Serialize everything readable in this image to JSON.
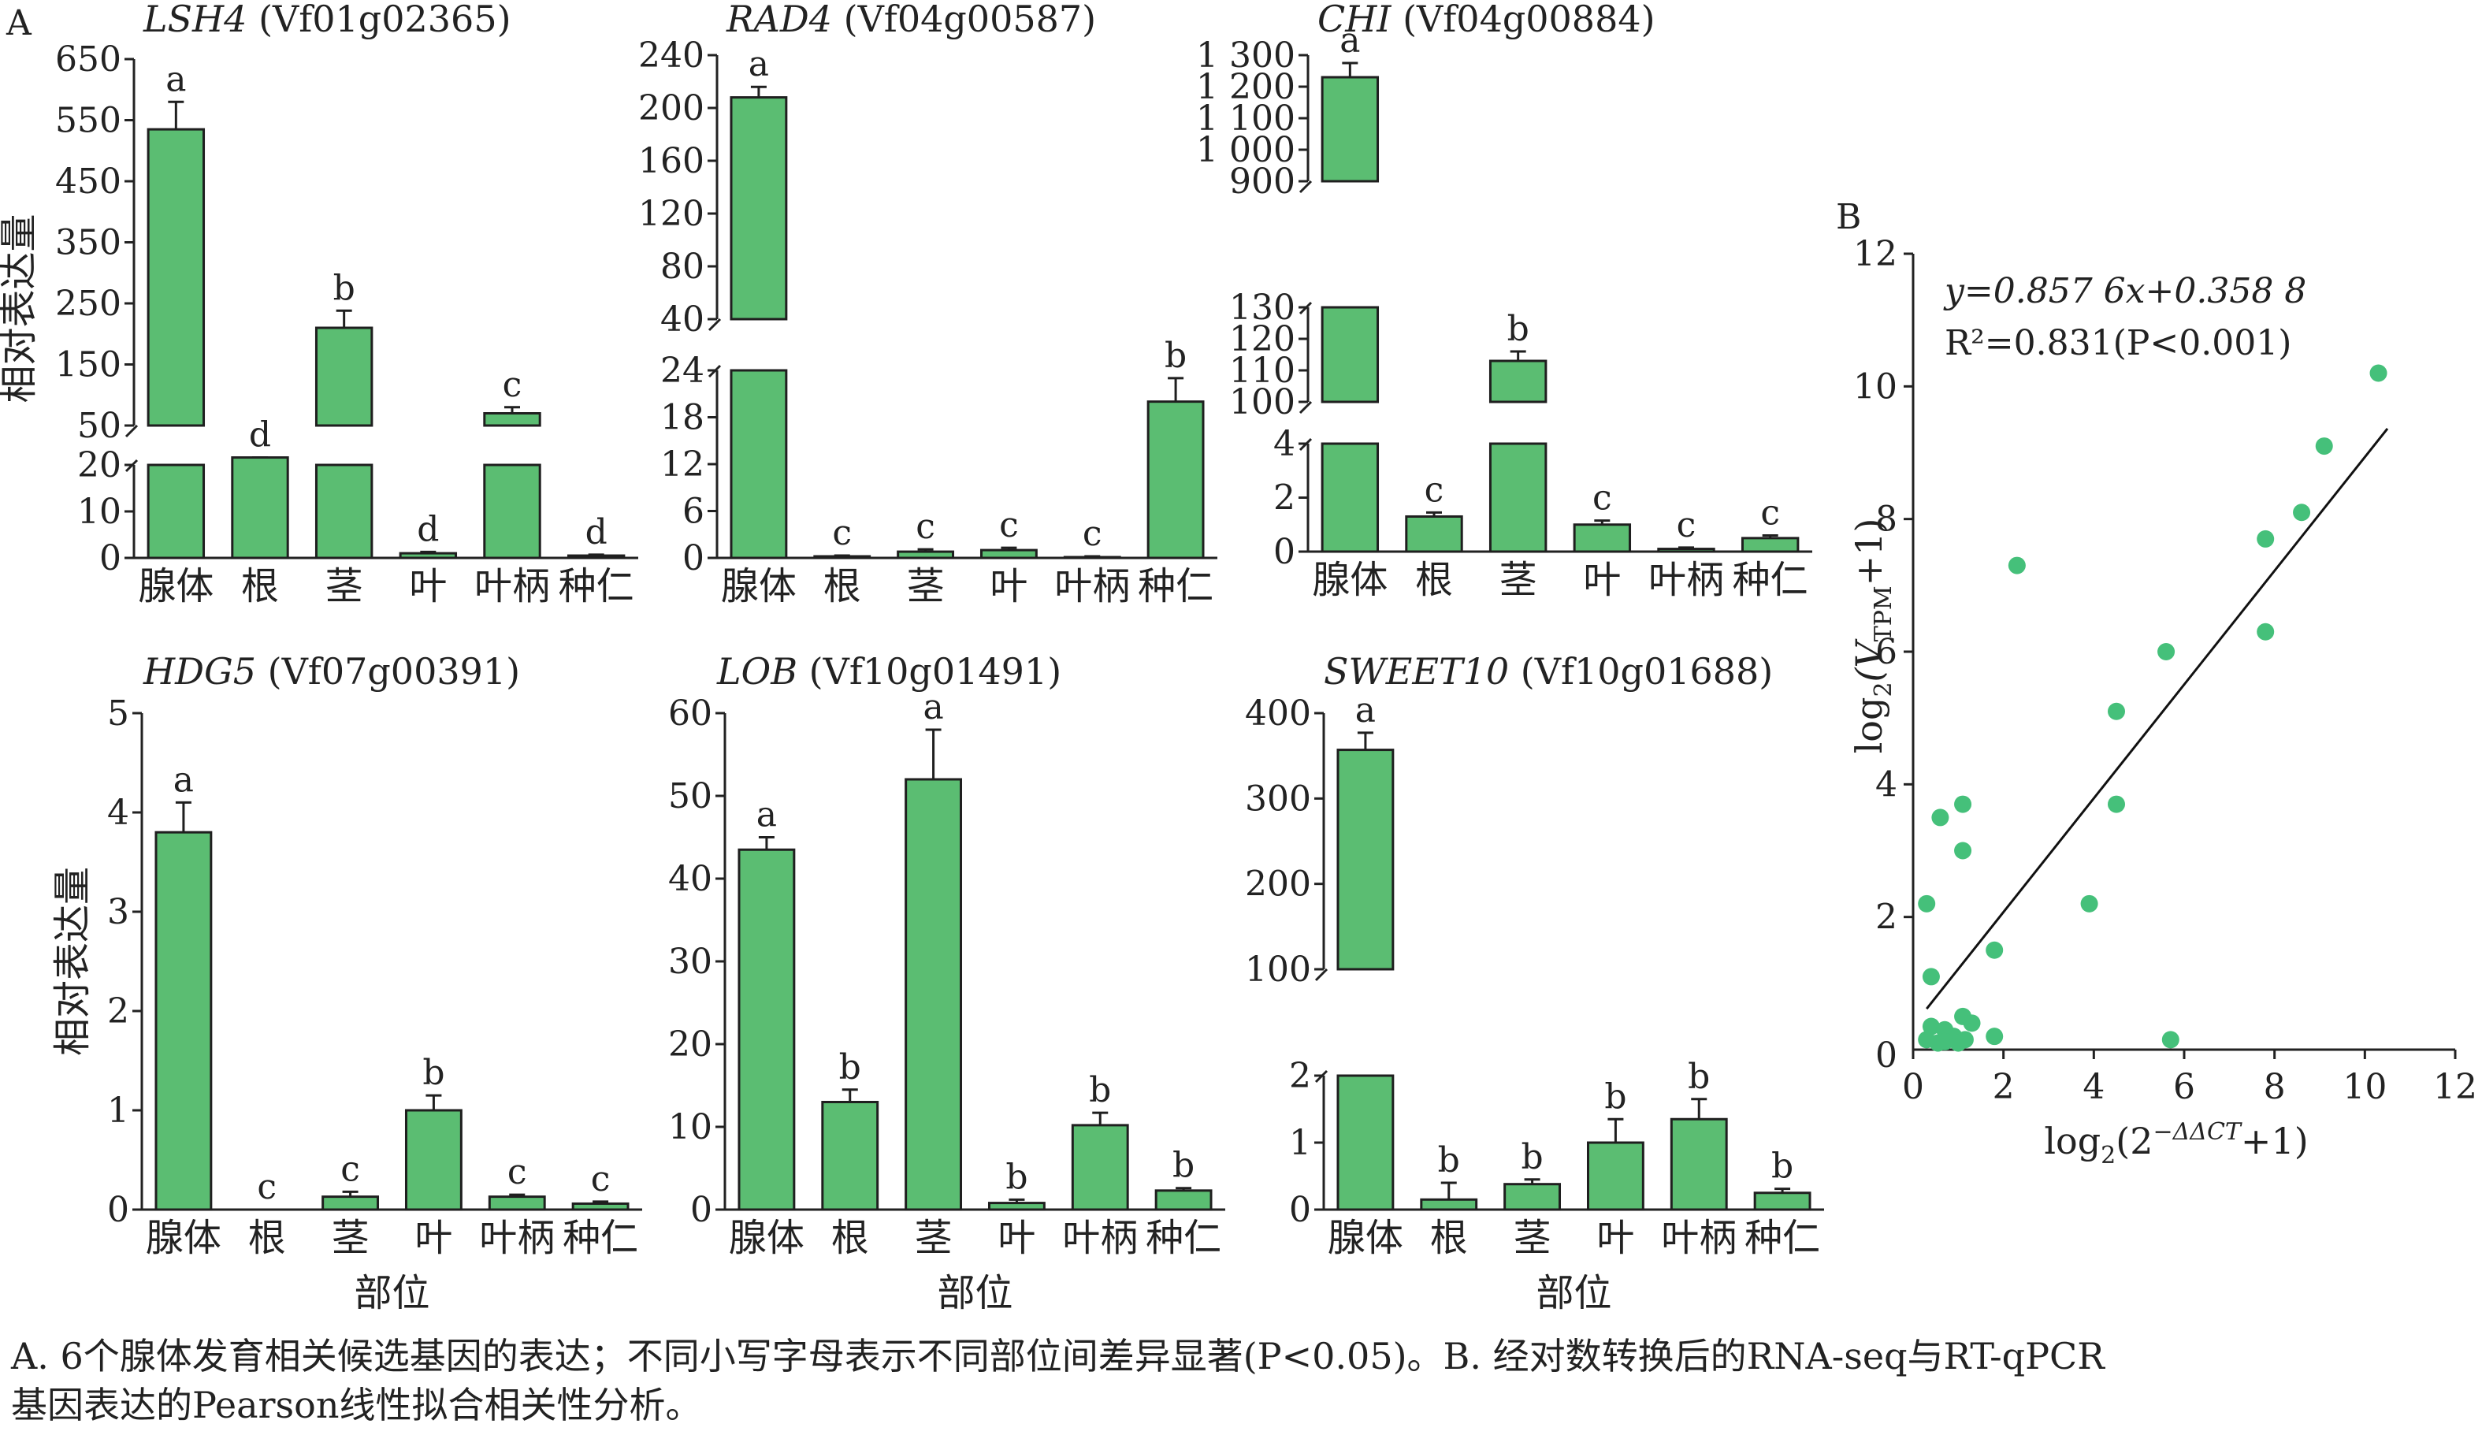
{
  "figure": {
    "panel_labels": [
      "A",
      "B"
    ],
    "caption_line1": "A. 6个腺体发育相关候选基因的表达；不同小写字母表示不同部位间差异显著(P<0.05)。B. 经对数转换后的RNA-seq与RT-qPCR",
    "caption_line2": "基因表达的Pearson线性拟合相关性分析。"
  },
  "chart_data": [
    {
      "type": "bar",
      "title_gene": "LSH4",
      "title_id": " (Vf01g02365)",
      "ylabel": "相对表达量",
      "xlabel": "",
      "categories": [
        "腺体",
        "根",
        "茎",
        "叶",
        "叶柄",
        "种仁"
      ],
      "values": [
        535,
        22,
        210,
        1,
        70,
        0.5
      ],
      "errors": [
        45,
        2,
        28,
        0.3,
        10,
        0.2
      ],
      "letters": [
        "a",
        "d",
        "b",
        "d",
        "c",
        "d"
      ],
      "broken_y": true,
      "ylim_low": [
        0,
        20
      ],
      "ylim_high": [
        50,
        650
      ],
      "yticks_low": [
        "0",
        "10",
        "20"
      ],
      "yticks_high": [
        "50",
        "150",
        "250",
        "350",
        "450",
        "550",
        "650"
      ]
    },
    {
      "type": "bar",
      "title_gene": "RAD4",
      "title_id": " (Vf04g00587)",
      "ylabel": "",
      "xlabel": "",
      "categories": [
        "腺体",
        "根",
        "茎",
        "叶",
        "叶柄",
        "种仁"
      ],
      "values": [
        208,
        0.2,
        0.8,
        1,
        0.1,
        20
      ],
      "errors": [
        8,
        0.1,
        0.3,
        0.3,
        0.1,
        3
      ],
      "letters": [
        "a",
        "c",
        "c",
        "c",
        "c",
        "b"
      ],
      "broken_y": true,
      "ylim_low": [
        0,
        24
      ],
      "ylim_high": [
        40,
        240
      ],
      "yticks_low": [
        "0",
        "6",
        "12",
        "18",
        "24"
      ],
      "yticks_high": [
        "40",
        "80",
        "120",
        "160",
        "200",
        "240"
      ]
    },
    {
      "type": "bar",
      "title_gene": "CHI",
      "title_id": " (Vf04g00884)",
      "ylabel": "",
      "xlabel": "",
      "categories": [
        "腺体",
        "根",
        "茎",
        "叶",
        "叶柄",
        "种仁"
      ],
      "values": [
        1230,
        1.3,
        113,
        1,
        0.1,
        0.5
      ],
      "errors": [
        45,
        0.15,
        3,
        0.15,
        0.05,
        0.1
      ],
      "letters": [
        "a",
        "c",
        "b",
        "c",
        "c",
        "c"
      ],
      "broken_y": true,
      "ylim_low": [
        0,
        4
      ],
      "ylim_mid": [
        100,
        130
      ],
      "ylim_high": [
        900,
        1300
      ],
      "yticks_low": [
        "0",
        "2",
        "4"
      ],
      "yticks_mid": [
        "100",
        "110",
        "120",
        "130"
      ],
      "yticks_high": [
        "900",
        "1 000",
        "1 100",
        "1 200",
        "1 300"
      ]
    },
    {
      "type": "bar",
      "title_gene": "HDG5",
      "title_id": " (Vf07g00391)",
      "ylabel": "相对表达量",
      "xlabel": "部位",
      "categories": [
        "腺体",
        "根",
        "茎",
        "叶",
        "叶柄",
        "种仁"
      ],
      "values": [
        3.8,
        0.0,
        0.13,
        1.0,
        0.13,
        0.06
      ],
      "errors": [
        0.3,
        0.0,
        0.05,
        0.15,
        0.02,
        0.02
      ],
      "letters": [
        "a",
        "c",
        "c",
        "b",
        "c",
        "c"
      ],
      "broken_y": false,
      "ylim": [
        0,
        5
      ],
      "yticks": [
        "0",
        "1",
        "2",
        "3",
        "4",
        "5"
      ]
    },
    {
      "type": "bar",
      "title_gene": "LOB",
      "title_id": " (Vf10g01491)",
      "ylabel": "",
      "xlabel": "部位",
      "categories": [
        "腺体",
        "根",
        "茎",
        "叶",
        "叶柄",
        "种仁"
      ],
      "values": [
        43.5,
        13,
        52,
        0.8,
        10.2,
        2.3
      ],
      "errors": [
        1.5,
        1.5,
        6,
        0.4,
        1.5,
        0.3
      ],
      "letters": [
        "a",
        "b",
        "a",
        "b",
        "b",
        "b"
      ],
      "broken_y": false,
      "ylim": [
        0,
        60
      ],
      "yticks": [
        "0",
        "10",
        "20",
        "30",
        "40",
        "50",
        "60"
      ]
    },
    {
      "type": "bar",
      "title_gene": "SWEET10",
      "title_id": " (Vf10g01688)",
      "ylabel": "",
      "xlabel": "部位",
      "categories": [
        "腺体",
        "根",
        "茎",
        "叶",
        "叶柄",
        "种仁"
      ],
      "values": [
        357,
        0.15,
        0.38,
        1.0,
        1.35,
        0.25
      ],
      "errors": [
        20,
        0.25,
        0.07,
        0.35,
        0.3,
        0.06
      ],
      "letters": [
        "a",
        "b",
        "b",
        "b",
        "b",
        "b"
      ],
      "broken_y": true,
      "ylim_low": [
        0,
        2
      ],
      "ylim_high": [
        100,
        400
      ],
      "yticks_low": [
        "0",
        "1",
        "2"
      ],
      "yticks_high": [
        "100",
        "200",
        "300",
        "400"
      ]
    },
    {
      "type": "scatter",
      "equation": "y=0.857 6x+0.358 8",
      "r2_label": "R²=0.831(P<0.001)",
      "xlabel": "log₂(2⁻ᐞᐞCT+1)",
      "xlabel_main": "log",
      "xlabel_sub": "2",
      "xlabel_paren": "(2",
      "xlabel_sup": "−ΔΔCT",
      "xlabel_tail": "+1)",
      "ylabel_main": "log",
      "ylabel_sub": "2",
      "ylabel_paren": "(V",
      "ylabel_vsub": "TPM",
      "ylabel_tail": "+1)",
      "xlim": [
        0,
        12
      ],
      "ylim": [
        0,
        12
      ],
      "xticks": [
        "0",
        "2",
        "4",
        "6",
        "8",
        "10",
        "12"
      ],
      "yticks": [
        "2",
        "4",
        "6",
        "8",
        "10",
        "12"
      ],
      "fit": {
        "slope": 0.8576,
        "intercept": 0.3588
      },
      "points": [
        [
          10.3,
          10.2
        ],
        [
          9.1,
          9.1
        ],
        [
          8.6,
          8.1
        ],
        [
          7.8,
          7.7
        ],
        [
          7.8,
          6.3
        ],
        [
          5.6,
          6.0
        ],
        [
          4.5,
          5.1
        ],
        [
          4.5,
          3.7
        ],
        [
          3.9,
          2.2
        ],
        [
          2.3,
          7.3
        ],
        [
          1.1,
          3.7
        ],
        [
          0.6,
          3.5
        ],
        [
          1.1,
          3.0
        ],
        [
          0.3,
          2.2
        ],
        [
          1.8,
          1.5
        ],
        [
          0.4,
          1.1
        ],
        [
          1.1,
          0.5
        ],
        [
          1.3,
          0.4
        ],
        [
          0.4,
          0.35
        ],
        [
          0.7,
          0.3
        ],
        [
          0.9,
          0.2
        ],
        [
          0.3,
          0.15
        ],
        [
          0.55,
          0.1
        ],
        [
          1.0,
          0.1
        ],
        [
          1.15,
          0.15
        ],
        [
          1.8,
          0.2
        ],
        [
          5.7,
          0.15
        ],
        [
          0.7,
          0.12
        ]
      ]
    }
  ]
}
